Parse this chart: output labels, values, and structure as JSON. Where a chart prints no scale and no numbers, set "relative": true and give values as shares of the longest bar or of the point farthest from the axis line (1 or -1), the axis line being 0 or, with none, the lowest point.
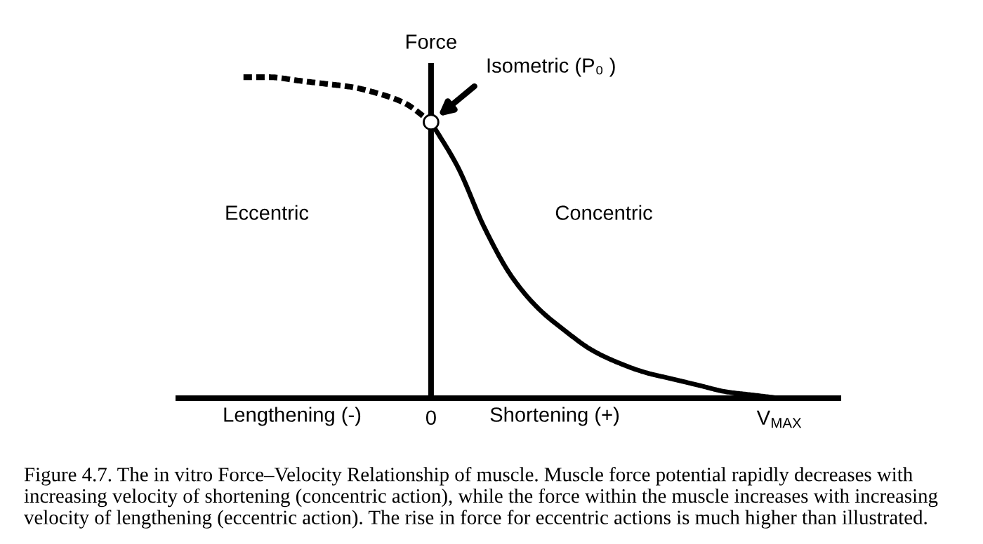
{
  "chart_data": {
    "type": "line",
    "relative": true,
    "ylabel": "Force",
    "tick_labels": "x",
    "categories": [
      null,
      null,
      null,
      null,
      null,
      null,
      null,
      "0",
      null,
      null,
      null,
      null,
      null,
      null,
      null,
      null,
      null,
      null,
      null,
      null,
      "V$_{MAX}$"
    ],
    "series": [
      {
        "color": "#000000",
        "line_style": "dashed",
        "values": [
          1.0,
          1.0,
          0.99,
          0.98,
          0.97,
          0.95,
          0.92,
          0.86,
          null,
          null,
          null,
          null,
          null,
          null,
          null,
          null,
          null,
          null,
          null,
          null,
          null
        ]
      },
      {
        "color": "#000000",
        "line_style": "solid",
        "values": [
          null,
          null,
          null,
          null,
          null,
          null,
          null,
          0.86,
          0.72,
          0.53,
          0.38,
          0.28,
          0.21,
          0.15,
          0.11,
          0.08,
          0.06,
          0.04,
          0.02,
          0.01,
          0.0
        ]
      },
      {
        "type": "scatter",
        "marker": "circle",
        "color": "#ffffff",
        "values": [
          null,
          null,
          null,
          null,
          null,
          null,
          null,
          0.86,
          null,
          null,
          null,
          null,
          null,
          null,
          null,
          null,
          null,
          null,
          null,
          null,
          null
        ]
      }
    ],
    "annotations": [
      "Isometric (P₀ )",
      "Eccentric",
      "Concentric",
      "Lengthening (-)",
      "Shortening (+)",
      "Figure 4.7. The in vitro Force–Velocity Relationship of muscle. Muscle force potential rapidly decreases with increasing velocity of shortening (concentric action), while the force within the muscle increases with increasing velocity of lengthening (eccentric action). The rise in force for eccentric actions is much higher than illustrated."
    ]
  }
}
